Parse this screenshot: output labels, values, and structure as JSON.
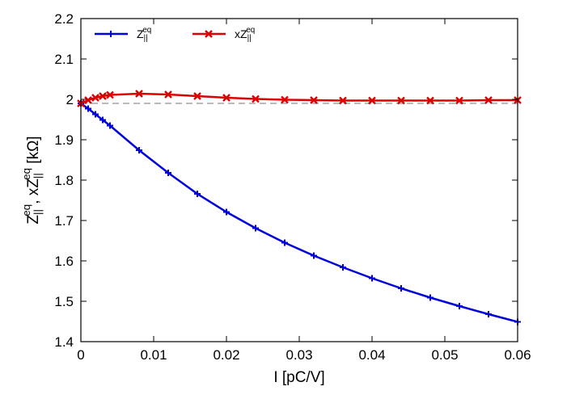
{
  "chart_data": {
    "type": "line",
    "xlabel": "I [pC/V]",
    "ylabel": {
      "parts": [
        "Z",
        "||",
        "eq",
        ", xZ",
        "||",
        "eq",
        " [kΩ]"
      ]
    },
    "xlim": [
      0,
      0.06
    ],
    "ylim": [
      1.4,
      2.2
    ],
    "x_ticks": [
      0,
      0.01,
      0.02,
      0.03,
      0.04,
      0.05,
      0.06
    ],
    "x_tick_labels": [
      "0",
      "0.01",
      "0.02",
      "0.03",
      "0.04",
      "0.05",
      "0.06"
    ],
    "y_ticks": [
      1.4,
      1.5,
      1.6,
      1.7,
      1.8,
      1.9,
      2.0,
      2.1,
      2.2
    ],
    "y_tick_labels": [
      "1.4",
      "1.5",
      "1.6",
      "1.7",
      "1.8",
      "1.9",
      "2",
      "2.1",
      "2.2"
    ],
    "grid": false,
    "legend_placement": "top-left",
    "reference_line": {
      "y": 1.99,
      "style": "dashed",
      "color": "#bbbbbb"
    },
    "series": [
      {
        "name": "Z||eq",
        "legend_parts": [
          "Z",
          "||",
          "eq"
        ],
        "color": "#0000dd",
        "marker": "plus",
        "x": [
          0,
          0.001,
          0.002,
          0.003,
          0.004,
          0.008,
          0.012,
          0.016,
          0.02,
          0.024,
          0.028,
          0.032,
          0.036,
          0.04,
          0.044,
          0.048,
          0.052,
          0.056,
          0.06
        ],
        "values": [
          1.99,
          1.977,
          1.963,
          1.949,
          1.935,
          1.874,
          1.818,
          1.766,
          1.721,
          1.681,
          1.645,
          1.613,
          1.584,
          1.557,
          1.532,
          1.509,
          1.488,
          1.468,
          1.449
        ]
      },
      {
        "name": "xZ||eq",
        "legend_parts": [
          "xZ",
          "||",
          "eq"
        ],
        "color": "#dd0000",
        "marker": "x",
        "x": [
          0,
          0.001,
          0.002,
          0.003,
          0.004,
          0.008,
          0.012,
          0.016,
          0.02,
          0.024,
          0.028,
          0.032,
          0.036,
          0.04,
          0.044,
          0.048,
          0.052,
          0.056,
          0.06
        ],
        "values": [
          1.99,
          1.998,
          2.004,
          2.008,
          2.011,
          2.014,
          2.012,
          2.008,
          2.004,
          2.001,
          1.999,
          1.998,
          1.997,
          1.997,
          1.997,
          1.997,
          1.997,
          1.998,
          1.998
        ]
      }
    ]
  }
}
